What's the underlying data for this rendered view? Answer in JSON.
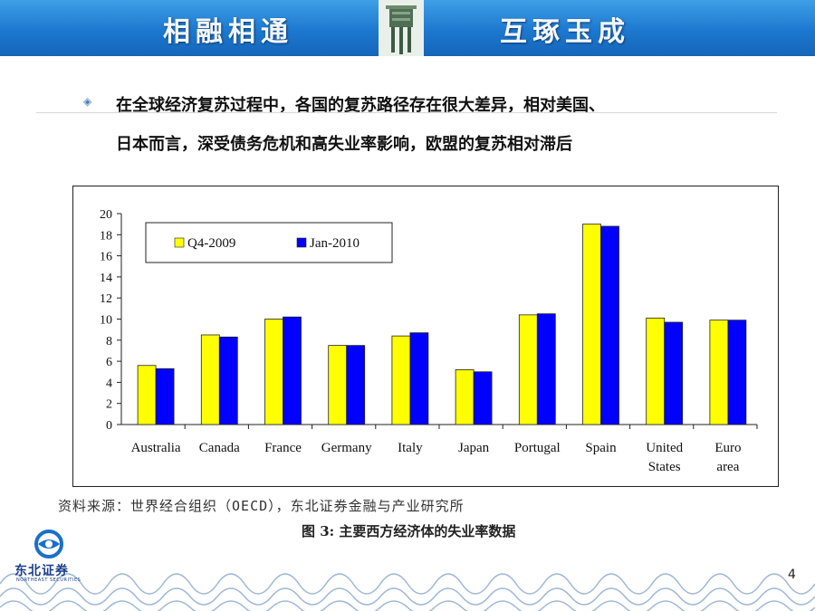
{
  "header": {
    "title_left": "相融相通",
    "title_right": "互琢玉成"
  },
  "bullet_text_line1": "在全球经济复苏过程中，各国的复苏路径存在很大差异，相对美国、",
  "bullet_text_line2": "日本而言，深受债务危机和高失业率影响，欧盟的复苏相对滞后",
  "source": "资料来源：世界经合组织（OECD），东北证券金融与产业研究所",
  "caption": "图 3:  主要西方经济体的失业率数据",
  "logo": {
    "name": "东北证券",
    "subtitle": "NORTHEAST SECURITIES"
  },
  "page_number": "4",
  "colors": {
    "header_blue": "#1c78cf",
    "series1": "#ffff00",
    "series2": "#0000ff"
  },
  "chart_data": {
    "type": "bar",
    "categories": [
      [
        "Australia"
      ],
      [
        "Canada"
      ],
      [
        "France"
      ],
      [
        "Germany"
      ],
      [
        "Italy"
      ],
      [
        "Japan"
      ],
      [
        "Portugal"
      ],
      [
        "Spain"
      ],
      [
        "United",
        "States"
      ],
      [
        "Euro",
        "area"
      ]
    ],
    "series": [
      {
        "name": "Q4-2009",
        "color": "#ffff00",
        "values": [
          5.6,
          8.5,
          10.0,
          7.5,
          8.4,
          5.2,
          10.4,
          19.0,
          10.1,
          9.9
        ]
      },
      {
        "name": "Jan-2010",
        "color": "#0000ff",
        "values": [
          5.3,
          8.3,
          10.2,
          7.5,
          8.7,
          5.0,
          10.5,
          18.8,
          9.7,
          9.9
        ]
      }
    ],
    "ylim": [
      0,
      20
    ],
    "yticks": [
      "0",
      "2",
      "4",
      "6",
      "8",
      "10",
      "12",
      "14",
      "16",
      "18",
      "20"
    ],
    "legend_position": "top-left",
    "grid": false
  }
}
